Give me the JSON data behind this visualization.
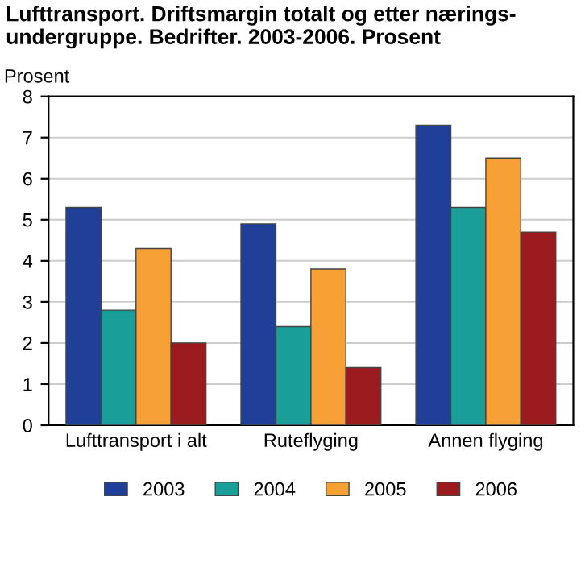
{
  "chart_data": {
    "type": "bar",
    "title": "Lufttransport. Driftsmargin totalt og etter nærings-\nundergruppe. Bedrifter. 2003-2006. Prosent",
    "ylabel": "Prosent",
    "categories": [
      "Lufttransport i alt",
      "Ruteflyging",
      "Annen flyging"
    ],
    "series": [
      {
        "name": "2003",
        "color": "#1f3f99",
        "values": [
          5.3,
          4.9,
          7.3
        ]
      },
      {
        "name": "2004",
        "color": "#1a9e9a",
        "values": [
          2.8,
          2.4,
          5.3
        ]
      },
      {
        "name": "2005",
        "color": "#f7a035",
        "values": [
          4.3,
          3.8,
          6.5
        ]
      },
      {
        "name": "2006",
        "color": "#9b1b1e",
        "values": [
          2.0,
          1.4,
          4.7
        ]
      }
    ],
    "ylim": [
      0,
      8
    ],
    "yticks": [
      0,
      1,
      2,
      3,
      4,
      5,
      6,
      7,
      8
    ],
    "grid": "y",
    "legend": "bottom"
  }
}
